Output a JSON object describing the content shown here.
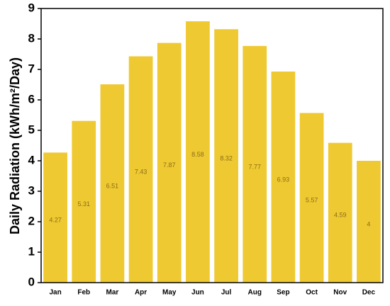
{
  "chart_data": {
    "type": "bar",
    "ylabel": "Daily Radiation (kWh/m²/Day)",
    "categories": [
      "Jan",
      "Feb",
      "Mar",
      "Apr",
      "May",
      "Jun",
      "Jul",
      "Aug",
      "Sep",
      "Oct",
      "Nov",
      "Dec"
    ],
    "values": [
      4.27,
      5.31,
      6.51,
      7.43,
      7.87,
      8.58,
      8.32,
      7.77,
      6.93,
      5.57,
      4.59,
      4
    ],
    "color": "#efc931",
    "ylim": [
      0,
      9
    ],
    "yticks": [
      0,
      1,
      2,
      3,
      4,
      5,
      6,
      7,
      8,
      9
    ]
  }
}
